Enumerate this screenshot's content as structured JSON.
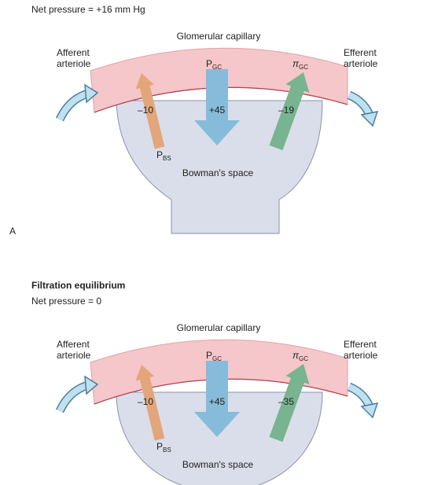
{
  "panel_a": {
    "net_pressure": "Net pressure = +16 mm Hg",
    "label": "A",
    "capillary": "Glomerular capillary",
    "afferent": [
      "Afferent",
      "arteriole"
    ],
    "efferent": [
      "Efferent",
      "arteriole"
    ],
    "p_gc": {
      "main": "P",
      "sub": "GC"
    },
    "pi_gc": {
      "main": "π",
      "sub": "GC"
    },
    "p_bs": {
      "main": "P",
      "sub": "BS"
    },
    "values": {
      "p_bs": "–10",
      "p_gc": "+45",
      "pi_gc": "–19"
    },
    "space": "Bowman's space"
  },
  "panel_b": {
    "title": "Filtration equilibrium",
    "net_pressure": "Net pressure = 0",
    "capillary": "Glomerular capillary",
    "afferent": [
      "Afferent",
      "arteriole"
    ],
    "efferent": [
      "Efferent",
      "arteriole"
    ],
    "p_gc": {
      "main": "P",
      "sub": "GC"
    },
    "pi_gc": {
      "main": "π",
      "sub": "GC"
    },
    "p_bs": {
      "main": "P",
      "sub": "BS"
    },
    "values": {
      "p_bs": "–10",
      "p_gc": "+45",
      "pi_gc": "–35"
    },
    "space": "Bowman's space"
  }
}
